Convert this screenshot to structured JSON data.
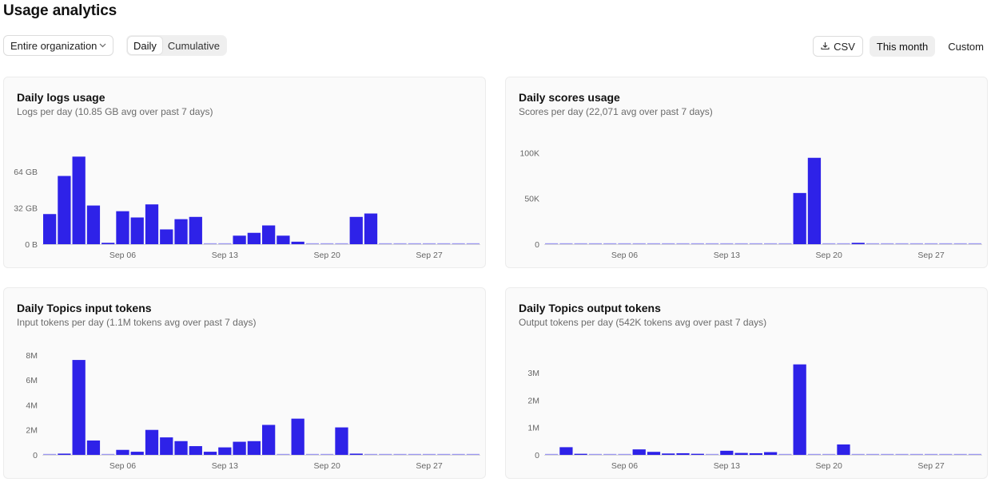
{
  "page": {
    "title": "Usage analytics"
  },
  "toolbar": {
    "scope_select": {
      "value": "Entire organization",
      "icon": "chevron-down-icon"
    },
    "view_toggle": {
      "options": [
        "Daily",
        "Cumulative"
      ],
      "selected": "Daily"
    },
    "csv_button": {
      "label": "CSV",
      "icon": "download-icon"
    },
    "range_buttons": {
      "options": [
        "This month",
        "Custom"
      ],
      "selected": "This month"
    }
  },
  "colors": {
    "bar": "#2e22e8",
    "bar_faint": "#9c97f1",
    "grid": "#d9d9d9",
    "card_bg": "#fafafa"
  },
  "cards": [
    {
      "title": "Daily logs usage",
      "subtitle": "Logs per day (10.85 GB avg over past 7 days)"
    },
    {
      "title": "Daily scores usage",
      "subtitle": "Scores per day (22,071 avg over past 7 days)"
    },
    {
      "title": "Daily Topics input tokens",
      "subtitle": "Input tokens per day (1.1M tokens avg over past 7 days)"
    },
    {
      "title": "Daily Topics output tokens",
      "subtitle": "Output tokens per day (542K tokens avg over past 7 days)"
    }
  ],
  "chart_data": [
    {
      "type": "bar",
      "categories": [
        "Sep 01",
        "Sep 02",
        "Sep 03",
        "Sep 04",
        "Sep 05",
        "Sep 06",
        "Sep 07",
        "Sep 08",
        "Sep 09",
        "Sep 10",
        "Sep 11",
        "Sep 12",
        "Sep 13",
        "Sep 14",
        "Sep 15",
        "Sep 16",
        "Sep 17",
        "Sep 18",
        "Sep 19",
        "Sep 20",
        "Sep 21",
        "Sep 22",
        "Sep 23",
        "Sep 24",
        "Sep 25",
        "Sep 26",
        "Sep 27",
        "Sep 28",
        "Sep 29",
        "Sep 30"
      ],
      "values": [
        26.5,
        60,
        77,
        34,
        1.2,
        29,
        23.5,
        35,
        13,
        22,
        24,
        0.3,
        0,
        7.5,
        10,
        16.5,
        7.5,
        2.2,
        0.3,
        0,
        0,
        24,
        27,
        0,
        0,
        0,
        0,
        0,
        0,
        0
      ],
      "ylim": [
        0,
        80
      ],
      "yticks": [
        0,
        32,
        64
      ],
      "ytick_labels": [
        "0 B",
        "32 GB",
        "64 GB"
      ],
      "xtick_labels": [
        "Sep 06",
        "Sep 13",
        "Sep 20",
        "Sep 27"
      ]
    },
    {
      "type": "bar",
      "categories": [
        "Sep 01",
        "Sep 02",
        "Sep 03",
        "Sep 04",
        "Sep 05",
        "Sep 06",
        "Sep 07",
        "Sep 08",
        "Sep 09",
        "Sep 10",
        "Sep 11",
        "Sep 12",
        "Sep 13",
        "Sep 14",
        "Sep 15",
        "Sep 16",
        "Sep 17",
        "Sep 18",
        "Sep 19",
        "Sep 20",
        "Sep 21",
        "Sep 22",
        "Sep 23",
        "Sep 24",
        "Sep 25",
        "Sep 26",
        "Sep 27",
        "Sep 28",
        "Sep 29",
        "Sep 30"
      ],
      "values": [
        300,
        200,
        0,
        0,
        0,
        400,
        0,
        300,
        200,
        400,
        600,
        300,
        0,
        600,
        200,
        0,
        0,
        56000,
        94500,
        300,
        0,
        1500,
        0,
        0,
        0,
        0,
        0,
        0,
        0,
        0
      ],
      "ylim": [
        0,
        110000
      ],
      "yticks": [
        0,
        50000,
        100000
      ],
      "ytick_labels": [
        "0",
        "50K",
        "100K"
      ],
      "xtick_labels": [
        "Sep 06",
        "Sep 13",
        "Sep 20",
        "Sep 27"
      ]
    },
    {
      "type": "bar",
      "categories": [
        "Sep 01",
        "Sep 02",
        "Sep 03",
        "Sep 04",
        "Sep 05",
        "Sep 06",
        "Sep 07",
        "Sep 08",
        "Sep 09",
        "Sep 10",
        "Sep 11",
        "Sep 12",
        "Sep 13",
        "Sep 14",
        "Sep 15",
        "Sep 16",
        "Sep 17",
        "Sep 18",
        "Sep 19",
        "Sep 20",
        "Sep 21",
        "Sep 22",
        "Sep 23",
        "Sep 24",
        "Sep 25",
        "Sep 26",
        "Sep 27",
        "Sep 28",
        "Sep 29",
        "Sep 30"
      ],
      "values": [
        0,
        0.1,
        7.6,
        1.15,
        0,
        0.4,
        0.25,
        2.0,
        1.4,
        1.1,
        0.7,
        0.25,
        0.6,
        1.05,
        1.1,
        2.4,
        0,
        2.9,
        0,
        0,
        2.2,
        0.1,
        0,
        0,
        0,
        0,
        0,
        0,
        0,
        0
      ],
      "ylim": [
        0,
        8.5
      ],
      "yticks": [
        0,
        2,
        4,
        6,
        8
      ],
      "ytick_labels": [
        "0",
        "2M",
        "4M",
        "6M",
        "8M"
      ],
      "xtick_labels": [
        "Sep 06",
        "Sep 13",
        "Sep 20",
        "Sep 27"
      ]
    },
    {
      "type": "bar",
      "categories": [
        "Sep 01",
        "Sep 02",
        "Sep 03",
        "Sep 04",
        "Sep 05",
        "Sep 06",
        "Sep 07",
        "Sep 08",
        "Sep 09",
        "Sep 10",
        "Sep 11",
        "Sep 12",
        "Sep 13",
        "Sep 14",
        "Sep 15",
        "Sep 16",
        "Sep 17",
        "Sep 18",
        "Sep 19",
        "Sep 20",
        "Sep 21",
        "Sep 22",
        "Sep 23",
        "Sep 24",
        "Sep 25",
        "Sep 26",
        "Sep 27",
        "Sep 28",
        "Sep 29",
        "Sep 30"
      ],
      "values": [
        0.02,
        0.28,
        0.04,
        0,
        0.02,
        0.02,
        0.2,
        0.11,
        0.05,
        0.06,
        0.04,
        0.02,
        0.15,
        0.07,
        0.06,
        0.1,
        0,
        3.3,
        0,
        0,
        0.38,
        0.03,
        0,
        0,
        0,
        0,
        0,
        0,
        0,
        0
      ],
      "ylim": [
        0,
        3.9
      ],
      "yticks": [
        0,
        1,
        2,
        3
      ],
      "ytick_labels": [
        "0",
        "1M",
        "2M",
        "3M"
      ],
      "xtick_labels": [
        "Sep 06",
        "Sep 13",
        "Sep 20",
        "Sep 27"
      ]
    }
  ]
}
